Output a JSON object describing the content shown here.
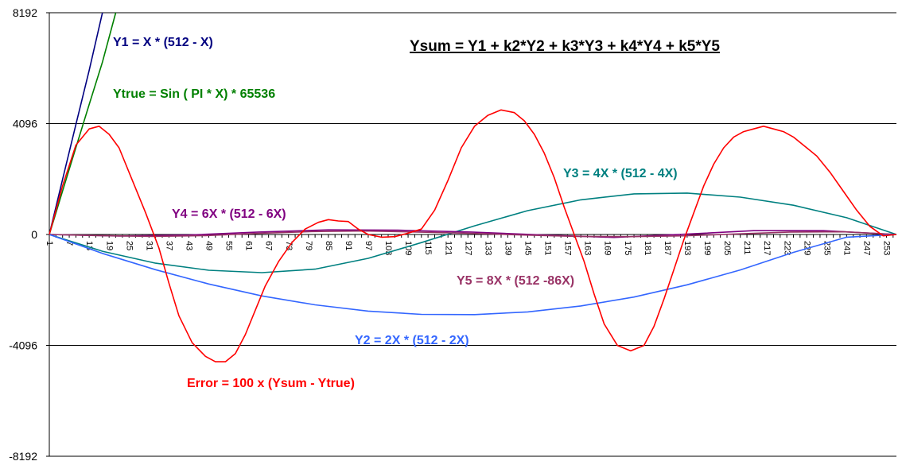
{
  "chart_data": {
    "type": "line",
    "title": "Ysum = Y1 + k2*Y2 + k3*Y3 + k4*Y4 + k5*Y5",
    "xlabel": "",
    "ylabel": "",
    "xlim": [
      1,
      256
    ],
    "ylim": [
      -8192,
      8192
    ],
    "grid": true,
    "yticks": [
      8192,
      4096,
      0,
      -4096,
      -8192
    ],
    "yticklabels": [
      "8192",
      "4096",
      "0",
      "-4096",
      "-8192"
    ],
    "xticks": [
      1,
      7,
      13,
      19,
      25,
      31,
      37,
      43,
      49,
      55,
      61,
      67,
      73,
      79,
      85,
      91,
      97,
      103,
      109,
      115,
      121,
      127,
      133,
      139,
      145,
      151,
      157,
      163,
      169,
      175,
      181,
      187,
      193,
      199,
      205,
      211,
      217,
      223,
      229,
      235,
      241,
      247,
      253
    ],
    "annotations": [
      {
        "text": "Y1 = X * (512 - X)",
        "color": "#000080"
      },
      {
        "text": "Ytrue  = Sin ( PI * X) * 65536",
        "color": "#008000"
      },
      {
        "text": "Y3 = 4X * (512 - 4X)",
        "color": "#008080"
      },
      {
        "text": "Y4 = 6X * (512 - 6X)",
        "color": "#800080"
      },
      {
        "text": "Y5 = 8X * (512 -86X)",
        "color": "#993366"
      },
      {
        "text": "Y2 = 2X * (512 - 2X)",
        "color": "#3366FF"
      },
      {
        "text": "Error = 100 x (Ysum - Ytrue)",
        "color": "#FF0000"
      }
    ],
    "series": [
      {
        "color": "#000080",
        "x": [
          1,
          5,
          9,
          13,
          17
        ],
        "y": [
          0,
          2040,
          4060,
          6060,
          8192
        ]
      },
      {
        "color": "#008000",
        "x": [
          1,
          5,
          9,
          13,
          17,
          21
        ],
        "y": [
          0,
          1610,
          3210,
          4800,
          6370,
          8192
        ]
      },
      {
        "color": "#008080",
        "x": [
          1,
          17,
          33,
          49,
          65,
          81,
          97,
          113,
          129,
          145,
          161,
          177,
          193,
          209,
          225,
          241,
          256
        ],
        "y": [
          0,
          -620,
          -1060,
          -1320,
          -1410,
          -1280,
          -880,
          -300,
          320,
          880,
          1280,
          1500,
          1530,
          1380,
          1080,
          620,
          0
        ]
      },
      {
        "color": "#800080",
        "x": [
          1,
          22,
          43,
          64,
          85,
          106,
          128,
          150,
          171,
          192,
          213,
          234,
          256
        ],
        "y": [
          0,
          -55,
          -20,
          90,
          170,
          160,
          90,
          -20,
          -110,
          10,
          140,
          140,
          0
        ]
      },
      {
        "color": "#993366",
        "x": [
          1,
          16,
          32,
          48,
          64,
          80,
          96,
          112,
          128,
          144,
          160,
          176,
          192,
          208,
          224,
          240,
          256
        ],
        "y": [
          0,
          -40,
          -70,
          -40,
          40,
          110,
          130,
          90,
          40,
          -20,
          -70,
          -80,
          -50,
          20,
          90,
          100,
          0
        ]
      },
      {
        "color": "#3366FF",
        "x": [
          1,
          17,
          33,
          49,
          65,
          81,
          97,
          113,
          129,
          145,
          161,
          177,
          193,
          209,
          225,
          241,
          256
        ],
        "y": [
          0,
          -700,
          -1300,
          -1830,
          -2270,
          -2600,
          -2830,
          -2950,
          -2960,
          -2860,
          -2640,
          -2310,
          -1860,
          -1310,
          -660,
          -100,
          0
        ]
      },
      {
        "color": "#FF0000",
        "x": [
          1,
          5,
          9,
          13,
          16,
          19,
          22,
          26,
          30,
          34,
          37,
          40,
          44,
          48,
          51,
          54,
          57,
          60,
          63,
          66,
          70,
          74,
          78,
          82,
          85,
          88,
          91,
          94,
          97,
          101,
          105,
          109,
          113,
          117,
          121,
          125,
          129,
          133,
          137,
          141,
          144,
          147,
          150,
          153,
          156,
          159,
          162,
          165,
          168,
          172,
          176,
          180,
          183,
          186,
          189,
          192,
          195,
          198,
          201,
          204,
          207,
          210,
          213,
          216,
          219,
          222,
          225,
          228,
          232,
          236,
          240,
          244,
          248,
          252,
          256
        ],
        "y": [
          0,
          1800,
          3300,
          3900,
          4000,
          3700,
          3200,
          2000,
          800,
          -500,
          -1800,
          -3000,
          -4000,
          -4500,
          -4700,
          -4700,
          -4400,
          -3700,
          -2800,
          -1900,
          -1000,
          -300,
          200,
          450,
          550,
          500,
          480,
          200,
          0,
          -100,
          -80,
          50,
          200,
          900,
          2000,
          3200,
          4000,
          4400,
          4600,
          4500,
          4200,
          3700,
          3000,
          2100,
          1000,
          0,
          -1000,
          -2200,
          -3300,
          -4100,
          -4300,
          -4100,
          -3400,
          -2400,
          -1300,
          -200,
          800,
          1800,
          2600,
          3200,
          3600,
          3800,
          3900,
          4000,
          3900,
          3800,
          3600,
          3300,
          2900,
          2300,
          1600,
          900,
          300,
          -50,
          0
        ]
      }
    ]
  }
}
